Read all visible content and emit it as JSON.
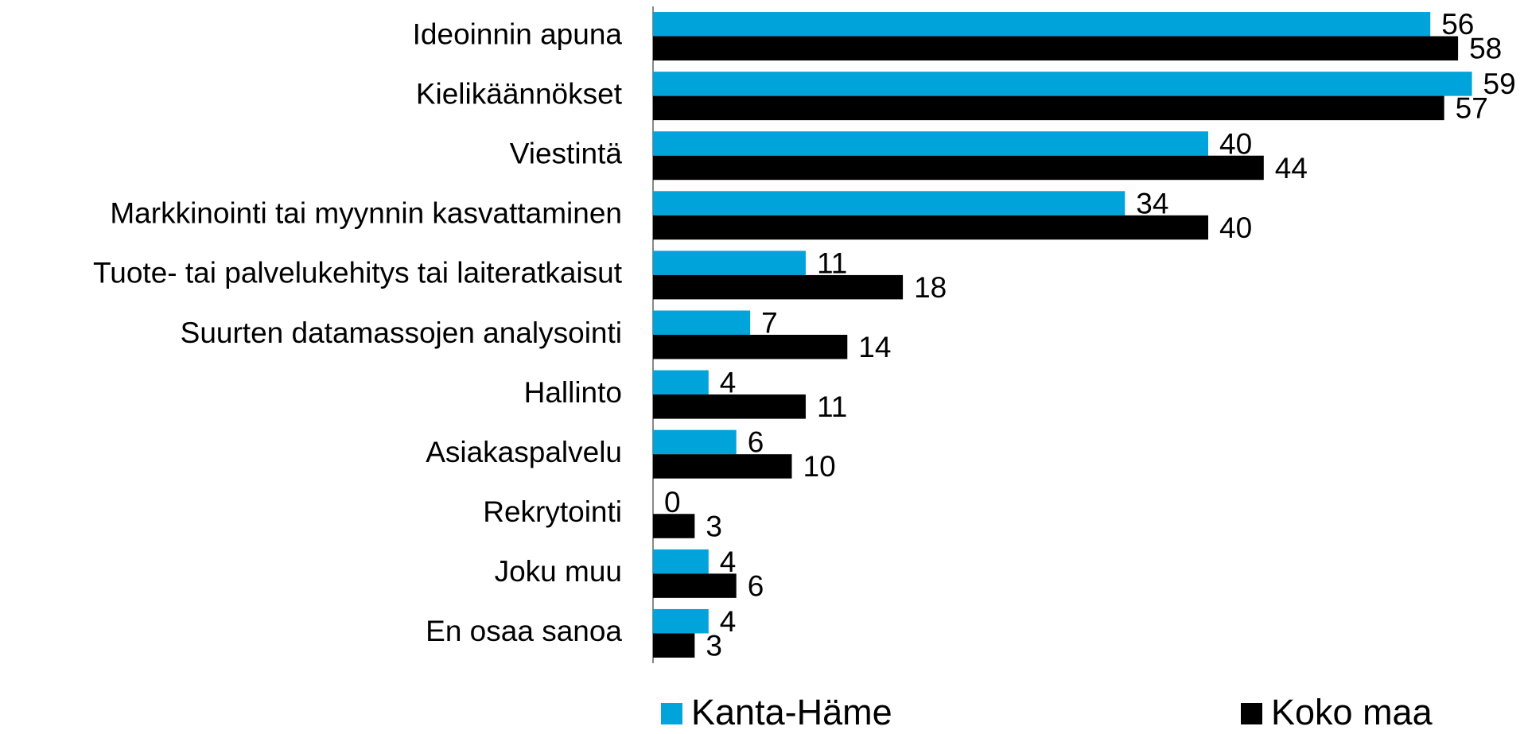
{
  "chart_data": {
    "type": "barh",
    "categories": [
      "Ideoinnin apuna",
      "Kielikäännökset",
      "Viestintä",
      "Markkinointi tai myynnin kasvattaminen",
      "Tuote- tai palvelukehitys tai laiteratkaisut",
      "Suurten datamassojen analysointi",
      "Hallinto",
      "Asiakaspalvelu",
      "Rekrytointi",
      "Joku muu",
      "En osaa sanoa"
    ],
    "series": [
      {
        "name": "Kanta-Häme",
        "color": "#00a3da",
        "values": [
          56,
          59,
          40,
          34,
          11,
          7,
          4,
          6,
          0,
          4,
          4
        ]
      },
      {
        "name": "Koko maa",
        "color": "#000000",
        "values": [
          58,
          57,
          44,
          40,
          18,
          14,
          11,
          10,
          3,
          6,
          3
        ]
      }
    ],
    "xlim": [
      0,
      60
    ]
  }
}
